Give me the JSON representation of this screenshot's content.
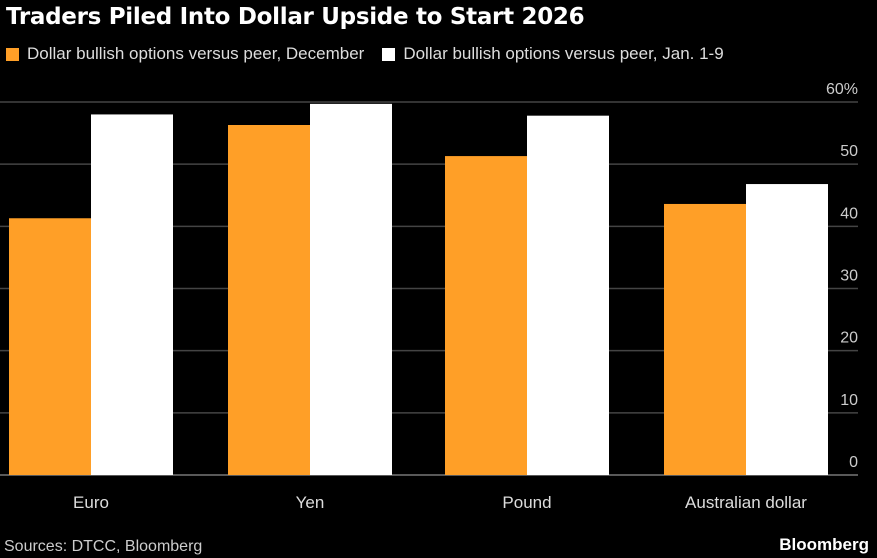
{
  "chart_data": {
    "type": "bar",
    "title": "Traders Piled Into Dollar Upside to Start 2026",
    "categories": [
      "Euro",
      "Yen",
      "Pound",
      "Australian dollar"
    ],
    "series": [
      {
        "name": "Dollar bullish options versus peer, December",
        "color": "#ff9f27",
        "values": [
          41.3,
          56.3,
          51.3,
          43.6
        ]
      },
      {
        "name": "Dollar bullish options versus peer, Jan. 1-9",
        "color": "#ffffff",
        "values": [
          58.0,
          59.7,
          57.8,
          46.8
        ]
      }
    ],
    "ylim": [
      0,
      60
    ],
    "yticks": [
      "0",
      "10",
      "20",
      "30",
      "40",
      "50",
      "60%"
    ],
    "grid": true,
    "legend_position": "top-left"
  },
  "source": "Sources: DTCC, Bloomberg",
  "brand": "Bloomberg"
}
